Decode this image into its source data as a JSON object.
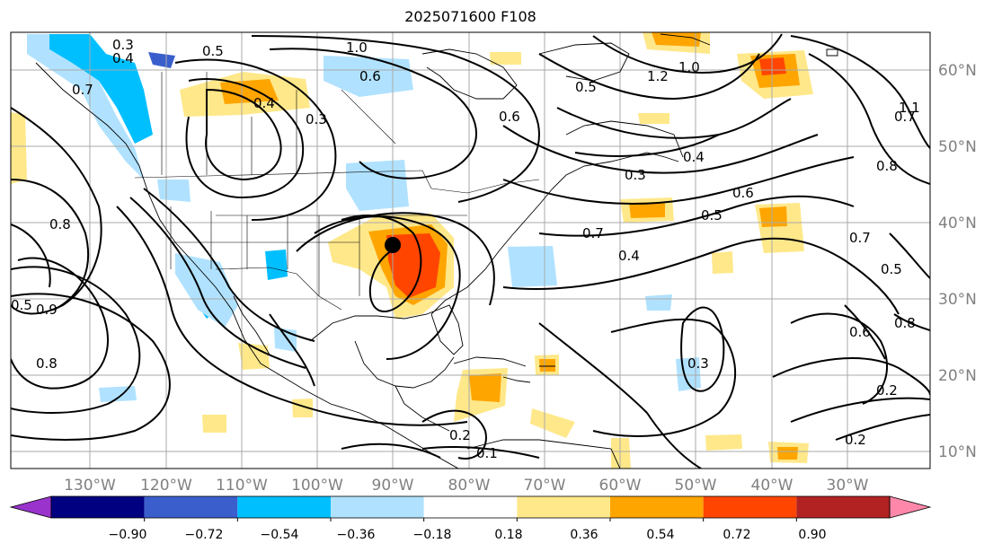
{
  "title": "2025071600 F108",
  "map": {
    "lon_labels": [
      "130°W",
      "120°W",
      "110°W",
      "100°W",
      "90°W",
      "80°W",
      "70°W",
      "60°W",
      "50°W",
      "40°W",
      "30°W"
    ],
    "lat_labels": [
      "60°N",
      "50°N",
      "40°N",
      "30°N",
      "20°N",
      "10°N"
    ],
    "contour_labels": [
      "0.3",
      "0.4",
      "0.5",
      "1.0",
      "0.6",
      "0.7",
      "0.8",
      "0.9",
      "0.4",
      "0.3",
      "0.2",
      "0.1",
      "0.5",
      "0.6",
      "0.8",
      "0.7",
      "0.4",
      "0.5",
      "0.3",
      "0.2",
      "1.2",
      "1.0",
      "1.1",
      "0.7",
      "0.8",
      "0.6",
      "0.5",
      "0.7",
      "0.4",
      "0.5",
      "0.6",
      "0.8",
      "0.3",
      "0.2"
    ],
    "marker": "black-dot",
    "colors": {
      "contour": "#000000",
      "grid": "#a9a9a9",
      "coast": "#000000"
    }
  },
  "colorbar": {
    "ticks": [
      "−0.90",
      "−0.72",
      "−0.54",
      "−0.36",
      "−0.18",
      "0.18",
      "0.36",
      "0.54",
      "0.72",
      "0.90"
    ],
    "colors": [
      "#9933cc",
      "#000080",
      "#3a5fcd",
      "#00bfff",
      "#b0e2ff",
      "#ffffff",
      "#ffe88a",
      "#ffa500",
      "#ff4500",
      "#b22222",
      "#ff88aa"
    ]
  }
}
